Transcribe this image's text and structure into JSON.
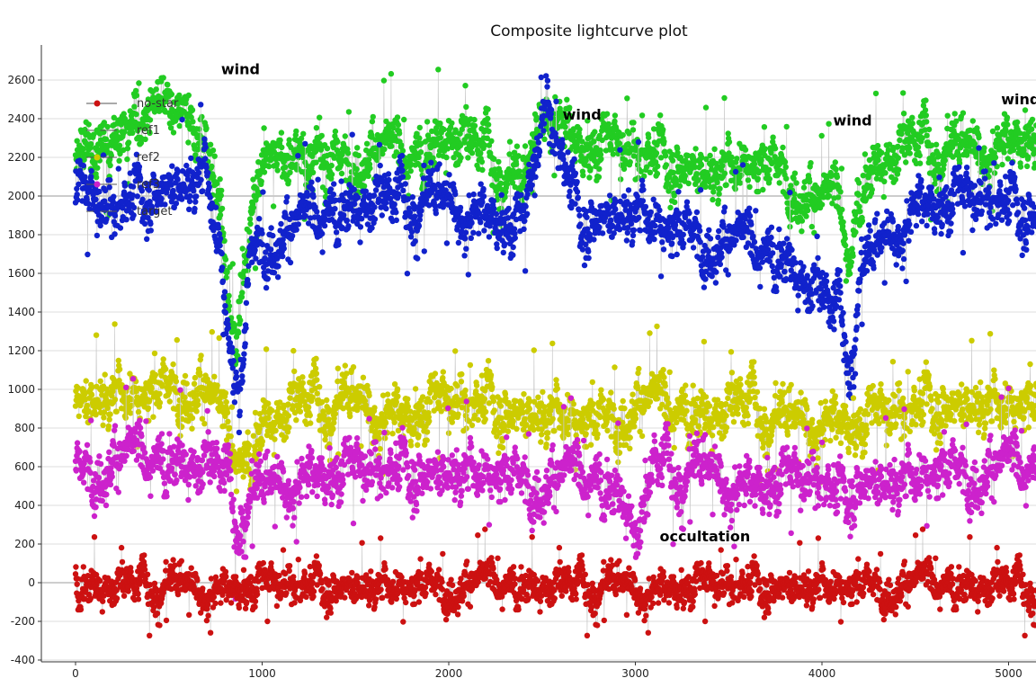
{
  "chart_data": {
    "type": "scatter",
    "title": "Composite lightcurve plot",
    "xlabel": "",
    "ylabel": "",
    "xlim": [
      -180,
      5150
    ],
    "ylim": [
      -400,
      2700
    ],
    "x_ticks": [
      0,
      1000,
      2000,
      3000,
      4000,
      5000
    ],
    "y_ticks": [
      -400,
      -200,
      0,
      200,
      400,
      600,
      800,
      1000,
      1200,
      1400,
      1600,
      1800,
      2000,
      2200,
      2400,
      2600
    ],
    "grid": true,
    "legend_position": "top-left",
    "legend": [
      "no-star",
      "ref1",
      "ref2",
      "ref3",
      "target"
    ],
    "series": [
      {
        "name": "ref1",
        "color": "#22cc22",
        "n_points": 5100,
        "x_range": [
          0,
          5150
        ],
        "points": [
          [
            0,
            2150
          ],
          [
            200,
            2300
          ],
          [
            400,
            2450
          ],
          [
            600,
            2350
          ],
          [
            700,
            2280
          ],
          [
            780,
            1900
          ],
          [
            820,
            1400
          ],
          [
            860,
            1250
          ],
          [
            900,
            1600
          ],
          [
            950,
            1900
          ],
          [
            1000,
            2150
          ],
          [
            1200,
            2250
          ],
          [
            1400,
            2200
          ],
          [
            1600,
            2250
          ],
          [
            1800,
            2200
          ],
          [
            2000,
            2350
          ],
          [
            2200,
            2250
          ],
          [
            2400,
            2050
          ],
          [
            2520,
            2550
          ],
          [
            2700,
            2300
          ],
          [
            3000,
            2250
          ],
          [
            3200,
            2200
          ],
          [
            3400,
            2150
          ],
          [
            3600,
            2200
          ],
          [
            3800,
            2150
          ],
          [
            4000,
            1950
          ],
          [
            4100,
            2000
          ],
          [
            4150,
            1600
          ],
          [
            4200,
            2050
          ],
          [
            4300,
            2200
          ],
          [
            4500,
            2300
          ],
          [
            4700,
            2250
          ],
          [
            4900,
            2300
          ],
          [
            5100,
            2350
          ]
        ]
      },
      {
        "name": "target",
        "color": "#1122cc",
        "n_points": 5100,
        "x_range": [
          0,
          5150
        ],
        "points": [
          [
            0,
            2000
          ],
          [
            200,
            1950
          ],
          [
            400,
            2050
          ],
          [
            600,
            2100
          ],
          [
            700,
            2150
          ],
          [
            780,
            1700
          ],
          [
            820,
            1300
          ],
          [
            860,
            1050
          ],
          [
            880,
            900
          ],
          [
            920,
            1500
          ],
          [
            950,
            1750
          ],
          [
            1000,
            1800
          ],
          [
            1200,
            1850
          ],
          [
            1400,
            1950
          ],
          [
            1600,
            2000
          ],
          [
            1800,
            2000
          ],
          [
            2000,
            2000
          ],
          [
            2200,
            1950
          ],
          [
            2400,
            1850
          ],
          [
            2520,
            2500
          ],
          [
            2700,
            1900
          ],
          [
            3000,
            1950
          ],
          [
            3200,
            1850
          ],
          [
            3400,
            1800
          ],
          [
            3600,
            1750
          ],
          [
            3800,
            1700
          ],
          [
            4000,
            1500
          ],
          [
            4100,
            1400
          ],
          [
            4150,
            1150
          ],
          [
            4200,
            1600
          ],
          [
            4300,
            1750
          ],
          [
            4500,
            2000
          ],
          [
            4700,
            2000
          ],
          [
            4900,
            2000
          ],
          [
            5100,
            1950
          ]
        ]
      },
      {
        "name": "ref2",
        "color": "#cccc00",
        "n_points": 5100,
        "x_range": [
          0,
          5150
        ],
        "points": [
          [
            0,
            950
          ],
          [
            200,
            1000
          ],
          [
            400,
            1000
          ],
          [
            600,
            1050
          ],
          [
            700,
            1000
          ],
          [
            850,
            700
          ],
          [
            900,
            600
          ],
          [
            1000,
            850
          ],
          [
            1200,
            950
          ],
          [
            1400,
            950
          ],
          [
            1600,
            950
          ],
          [
            1800,
            900
          ],
          [
            2000,
            950
          ],
          [
            2200,
            950
          ],
          [
            2400,
            900
          ],
          [
            2600,
            900
          ],
          [
            2800,
            850
          ],
          [
            3000,
            950
          ],
          [
            3200,
            900
          ],
          [
            3400,
            900
          ],
          [
            3600,
            950
          ],
          [
            3800,
            850
          ],
          [
            4000,
            900
          ],
          [
            4200,
            850
          ],
          [
            4400,
            900
          ],
          [
            4600,
            950
          ],
          [
            4800,
            950
          ],
          [
            5000,
            950
          ],
          [
            5150,
            950
          ]
        ]
      },
      {
        "name": "ref3",
        "color": "#cc22cc",
        "n_points": 5100,
        "x_range": [
          0,
          5150
        ],
        "points": [
          [
            0,
            600
          ],
          [
            200,
            650
          ],
          [
            400,
            650
          ],
          [
            600,
            650
          ],
          [
            800,
            600
          ],
          [
            860,
            300
          ],
          [
            900,
            450
          ],
          [
            1000,
            500
          ],
          [
            1200,
            600
          ],
          [
            1400,
            600
          ],
          [
            1600,
            600
          ],
          [
            1800,
            600
          ],
          [
            2000,
            600
          ],
          [
            2200,
            600
          ],
          [
            2400,
            550
          ],
          [
            2600,
            550
          ],
          [
            2800,
            550
          ],
          [
            2950,
            450
          ],
          [
            3000,
            300
          ],
          [
            3050,
            350
          ],
          [
            3100,
            650
          ],
          [
            3200,
            600
          ],
          [
            3400,
            600
          ],
          [
            3600,
            550
          ],
          [
            3800,
            550
          ],
          [
            4000,
            550
          ],
          [
            4100,
            450
          ],
          [
            4200,
            550
          ],
          [
            4400,
            550
          ],
          [
            4600,
            600
          ],
          [
            4800,
            600
          ],
          [
            5000,
            600
          ],
          [
            5150,
            600
          ]
        ]
      },
      {
        "name": "no-star",
        "color": "#cc1111",
        "n_points": 5100,
        "x_range": [
          0,
          5150
        ],
        "points": [
          [
            0,
            0
          ],
          [
            500,
            0
          ],
          [
            1000,
            0
          ],
          [
            1500,
            0
          ],
          [
            2000,
            0
          ],
          [
            2500,
            0
          ],
          [
            3000,
            0
          ],
          [
            3500,
            0
          ],
          [
            4000,
            0
          ],
          [
            4500,
            0
          ],
          [
            5000,
            0
          ],
          [
            5150,
            0
          ]
        ],
        "noise": 75
      }
    ],
    "annotations": [
      {
        "text": "wind",
        "x": 780,
        "y": 2630
      },
      {
        "text": "wind",
        "x": 2610,
        "y": 2395
      },
      {
        "text": "wind",
        "x": 4060,
        "y": 2365
      },
      {
        "text": "wind",
        "x": 4960,
        "y": 2475
      },
      {
        "text": "occultation",
        "x": 3130,
        "y": 215
      }
    ]
  }
}
